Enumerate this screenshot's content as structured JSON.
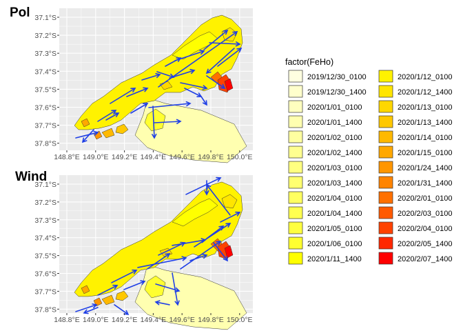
{
  "panels": [
    {
      "title": "Pol"
    },
    {
      "title": "Wind"
    }
  ],
  "axes": {
    "y_ticks": [
      "37.1°S",
      "37.2°S",
      "37.3°S",
      "37.4°S",
      "37.5°S",
      "37.6°S",
      "37.7°S",
      "37.8°S"
    ],
    "x_ticks": [
      "148.8°E",
      "149.0°E",
      "149.2°E",
      "149.4°E",
      "149.6°E",
      "149.8°E",
      "150.0°E"
    ]
  },
  "legend": {
    "title": "factor(FeHo)",
    "items": [
      {
        "label": "2019/12/30_0100",
        "color": "#ffffe0"
      },
      {
        "label": "2019/12/30_1400",
        "color": "#ffffcc"
      },
      {
        "label": "2020/1/01_0100",
        "color": "#ffffbf"
      },
      {
        "label": "2020/1/01_1400",
        "color": "#ffffb0"
      },
      {
        "label": "2020/1/02_0100",
        "color": "#ffffa0"
      },
      {
        "label": "2020/1/02_1400",
        "color": "#ffff90"
      },
      {
        "label": "2020/1/03_0100",
        "color": "#ffff80"
      },
      {
        "label": "2020/1/03_1400",
        "color": "#ffff70"
      },
      {
        "label": "2020/1/04_0100",
        "color": "#ffff60"
      },
      {
        "label": "2020/1/04_1400",
        "color": "#ffff50"
      },
      {
        "label": "2020/1/05_0100",
        "color": "#ffff40"
      },
      {
        "label": "2020/1/06_0100",
        "color": "#ffff30"
      },
      {
        "label": "2020/1/11_1400",
        "color": "#ffff00"
      },
      {
        "label": "2020/1/12_0100",
        "color": "#fff200"
      },
      {
        "label": "2020/1/12_1400",
        "color": "#ffe500"
      },
      {
        "label": "2020/1/13_0100",
        "color": "#ffd700"
      },
      {
        "label": "2020/1/13_1400",
        "color": "#ffc800"
      },
      {
        "label": "2020/1/14_0100",
        "color": "#ffb900"
      },
      {
        "label": "2020/1/15_0100",
        "color": "#ffa800"
      },
      {
        "label": "2020/1/24_1400",
        "color": "#ff9600"
      },
      {
        "label": "2020/1/31_1400",
        "color": "#ff8400"
      },
      {
        "label": "2020/2/01_0100",
        "color": "#ff7000"
      },
      {
        "label": "2020/2/03_0100",
        "color": "#ff5a00"
      },
      {
        "label": "2020/2/04_0100",
        "color": "#ff4200"
      },
      {
        "label": "2020/2/05_1400",
        "color": "#ff2800"
      },
      {
        "label": "2020/2/07_1400",
        "color": "#ff0000"
      }
    ]
  },
  "colors": {
    "panel_bg": "#ebebeb",
    "grid": "#ffffff",
    "arrow": "#1f3fe6",
    "outline": "#333333"
  }
}
